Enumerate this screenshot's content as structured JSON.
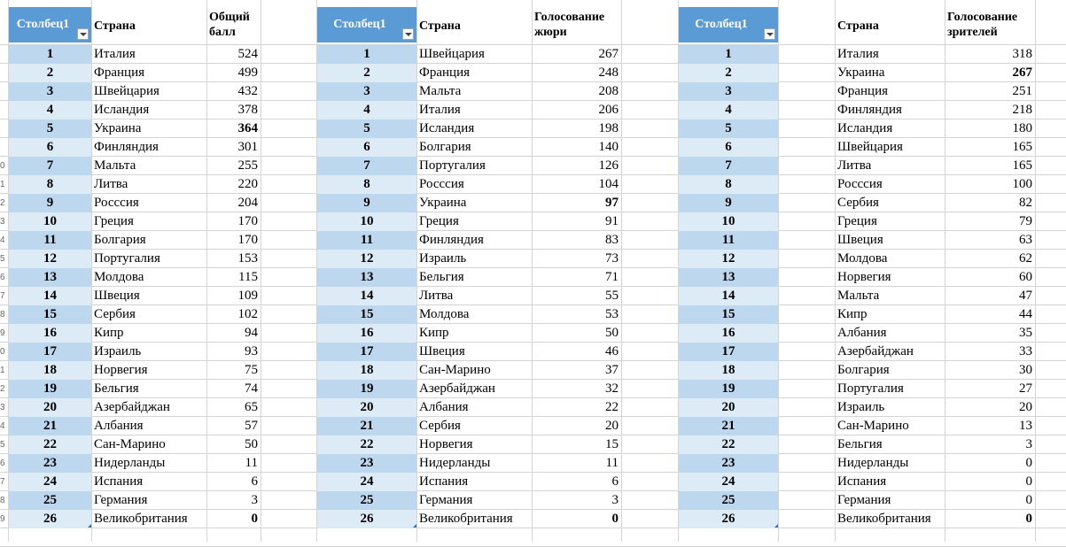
{
  "row_numbers": [
    "",
    "",
    "",
    "",
    "",
    "",
    "",
    "",
    "",
    "0",
    "1",
    "2",
    "3",
    "4",
    "5",
    "6",
    "7",
    "8",
    "9",
    "0",
    "1",
    "2",
    "3",
    "4",
    "5",
    "6",
    "7",
    "8",
    "9"
  ],
  "tables": [
    {
      "col_num_header": "Столбец1",
      "country_header": "Страна",
      "value_header": "Общий\nбалл",
      "rows": [
        {
          "n": "1",
          "country": "Италия",
          "value": "524"
        },
        {
          "n": "2",
          "country": "Франция",
          "value": "499"
        },
        {
          "n": "3",
          "country": "Швейцария",
          "value": "432"
        },
        {
          "n": "4",
          "country": "Исландия",
          "value": "378"
        },
        {
          "n": "5",
          "country": "Украина",
          "value": "364",
          "bold": true
        },
        {
          "n": "6",
          "country": "Финляндия",
          "value": "301"
        },
        {
          "n": "7",
          "country": "Мальта",
          "value": "255"
        },
        {
          "n": "8",
          "country": "Литва",
          "value": "220"
        },
        {
          "n": "9",
          "country": "Росссия",
          "value": "204"
        },
        {
          "n": "10",
          "country": "Греция",
          "value": "170"
        },
        {
          "n": "11",
          "country": "Болгария",
          "value": "170"
        },
        {
          "n": "12",
          "country": "Португалия",
          "value": "153"
        },
        {
          "n": "13",
          "country": "Молдова",
          "value": "115"
        },
        {
          "n": "14",
          "country": "Швеция",
          "value": "109"
        },
        {
          "n": "15",
          "country": "Сербия",
          "value": "102"
        },
        {
          "n": "16",
          "country": "Кипр",
          "value": "94"
        },
        {
          "n": "17",
          "country": "Израиль",
          "value": "93"
        },
        {
          "n": "18",
          "country": "Норвегия",
          "value": "75"
        },
        {
          "n": "19",
          "country": "Бельгия",
          "value": "74"
        },
        {
          "n": "20",
          "country": "Азербайджан",
          "value": "65"
        },
        {
          "n": "21",
          "country": "Албания",
          "value": "57"
        },
        {
          "n": "22",
          "country": "Сан-Марино",
          "value": "50"
        },
        {
          "n": "23",
          "country": "Нидерланды",
          "value": "11"
        },
        {
          "n": "24",
          "country": "Испания",
          "value": "6"
        },
        {
          "n": "25",
          "country": "Германия",
          "value": "3"
        },
        {
          "n": "26",
          "country": "Великобритания",
          "value": "0",
          "bold": true
        }
      ]
    },
    {
      "col_num_header": "Столбец1",
      "country_header": "Страна",
      "value_header": "Голосование\nжюри",
      "rows": [
        {
          "n": "1",
          "country": "Швейцария",
          "value": "267"
        },
        {
          "n": "2",
          "country": "Франция",
          "value": "248"
        },
        {
          "n": "3",
          "country": "Мальта",
          "value": "208"
        },
        {
          "n": "4",
          "country": "Италия",
          "value": "206"
        },
        {
          "n": "5",
          "country": "Исландия",
          "value": "198"
        },
        {
          "n": "6",
          "country": "Болгария",
          "value": "140"
        },
        {
          "n": "7",
          "country": "Португалия",
          "value": "126"
        },
        {
          "n": "8",
          "country": "Росссия",
          "value": "104"
        },
        {
          "n": "9",
          "country": "Украина",
          "value": "97",
          "bold": true
        },
        {
          "n": "10",
          "country": "Греция",
          "value": "91"
        },
        {
          "n": "11",
          "country": "Финляндия",
          "value": "83"
        },
        {
          "n": "12",
          "country": "Израиль",
          "value": "73"
        },
        {
          "n": "13",
          "country": "Бельгия",
          "value": "71"
        },
        {
          "n": "14",
          "country": "Литва",
          "value": "55"
        },
        {
          "n": "15",
          "country": "Молдова",
          "value": "53"
        },
        {
          "n": "16",
          "country": "Кипр",
          "value": "50"
        },
        {
          "n": "17",
          "country": "Швеция",
          "value": "46"
        },
        {
          "n": "18",
          "country": "Сан-Марино",
          "value": "37"
        },
        {
          "n": "19",
          "country": "Азербайджан",
          "value": "32"
        },
        {
          "n": "20",
          "country": "Албания",
          "value": "22"
        },
        {
          "n": "21",
          "country": "Сербия",
          "value": "20"
        },
        {
          "n": "22",
          "country": "Норвегия",
          "value": "15"
        },
        {
          "n": "23",
          "country": "Нидерланды",
          "value": "11"
        },
        {
          "n": "24",
          "country": "Испания",
          "value": "6"
        },
        {
          "n": "25",
          "country": "Германия",
          "value": "3"
        },
        {
          "n": "26",
          "country": "Великобритания",
          "value": "0",
          "bold": true
        }
      ]
    },
    {
      "col_num_header": "Столбец1",
      "country_header": "Страна",
      "value_header": "Голосование\nзрителей",
      "rows": [
        {
          "n": "1",
          "country": "Италия",
          "value": "318"
        },
        {
          "n": "2",
          "country": "Украина",
          "value": "267",
          "bold": true
        },
        {
          "n": "3",
          "country": "Франция",
          "value": "251"
        },
        {
          "n": "4",
          "country": "Финляндия",
          "value": "218"
        },
        {
          "n": "5",
          "country": "Исландия",
          "value": "180"
        },
        {
          "n": "6",
          "country": "Швейцария",
          "value": "165"
        },
        {
          "n": "7",
          "country": "Литва",
          "value": "165"
        },
        {
          "n": "8",
          "country": "Росссия",
          "value": "100"
        },
        {
          "n": "9",
          "country": "Сербия",
          "value": "82"
        },
        {
          "n": "10",
          "country": "Греция",
          "value": "79"
        },
        {
          "n": "11",
          "country": "Швеция",
          "value": "63"
        },
        {
          "n": "12",
          "country": "Молдова",
          "value": "62"
        },
        {
          "n": "13",
          "country": "Норвегия",
          "value": "60"
        },
        {
          "n": "14",
          "country": "Мальта",
          "value": "47"
        },
        {
          "n": "15",
          "country": "Кипр",
          "value": "44"
        },
        {
          "n": "16",
          "country": "Албания",
          "value": "35"
        },
        {
          "n": "17",
          "country": "Азербайджан",
          "value": "33"
        },
        {
          "n": "18",
          "country": "Болгария",
          "value": "30"
        },
        {
          "n": "19",
          "country": "Португалия",
          "value": "27"
        },
        {
          "n": "20",
          "country": "Израиль",
          "value": "20"
        },
        {
          "n": "21",
          "country": "Сан-Марино",
          "value": "13"
        },
        {
          "n": "22",
          "country": "Бельгия",
          "value": "3"
        },
        {
          "n": "23",
          "country": "Нидерланды",
          "value": "0"
        },
        {
          "n": "24",
          "country": "Испания",
          "value": "0"
        },
        {
          "n": "25",
          "country": "Германия",
          "value": "0"
        },
        {
          "n": "26",
          "country": "Великобритания",
          "value": "0",
          "bold": true
        }
      ]
    }
  ],
  "colors": {
    "header_blue": "#5b9bd5",
    "band_dark": "#bdd7ee",
    "band_light": "#ddebf7",
    "gridline": "#d4d4d4"
  }
}
